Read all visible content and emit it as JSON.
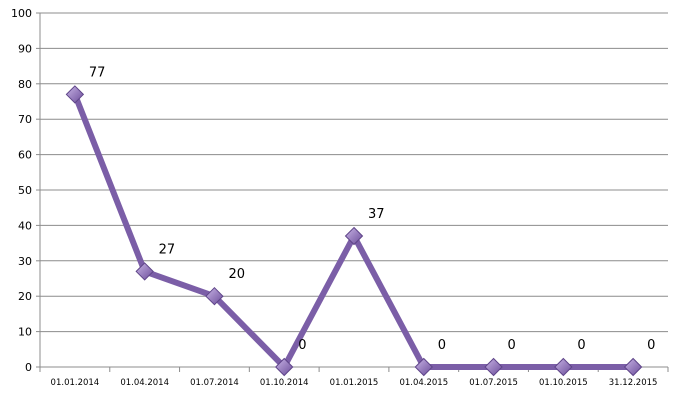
{
  "chart_data": {
    "type": "line",
    "title": "",
    "xlabel": "",
    "ylabel": "",
    "categories": [
      "01.01.2014",
      "01.04.2014",
      "01.07.2014",
      "01.10.2014",
      "01.01.2015",
      "01.04.2015",
      "01.07.2015",
      "01.10.2015",
      "31.12.2015"
    ],
    "series": [
      {
        "values": [
          77,
          27,
          20,
          0,
          37,
          0,
          0,
          0,
          0
        ]
      }
    ],
    "data_labels": [
      "77",
      "27",
      "20",
      "0",
      "37",
      "0",
      "0",
      "0",
      "0"
    ],
    "ylim": [
      0,
      100
    ],
    "yticks": [
      0,
      10,
      20,
      30,
      40,
      50,
      60,
      70,
      80,
      90,
      100
    ],
    "grid": true,
    "legend": "none",
    "colors": {
      "line": "#7b5ea7",
      "marker": "#7f5fb0",
      "marker_light": "#b9a2db",
      "grid": "#8c8c8c",
      "text": "#000000"
    },
    "marker": "diamond"
  }
}
